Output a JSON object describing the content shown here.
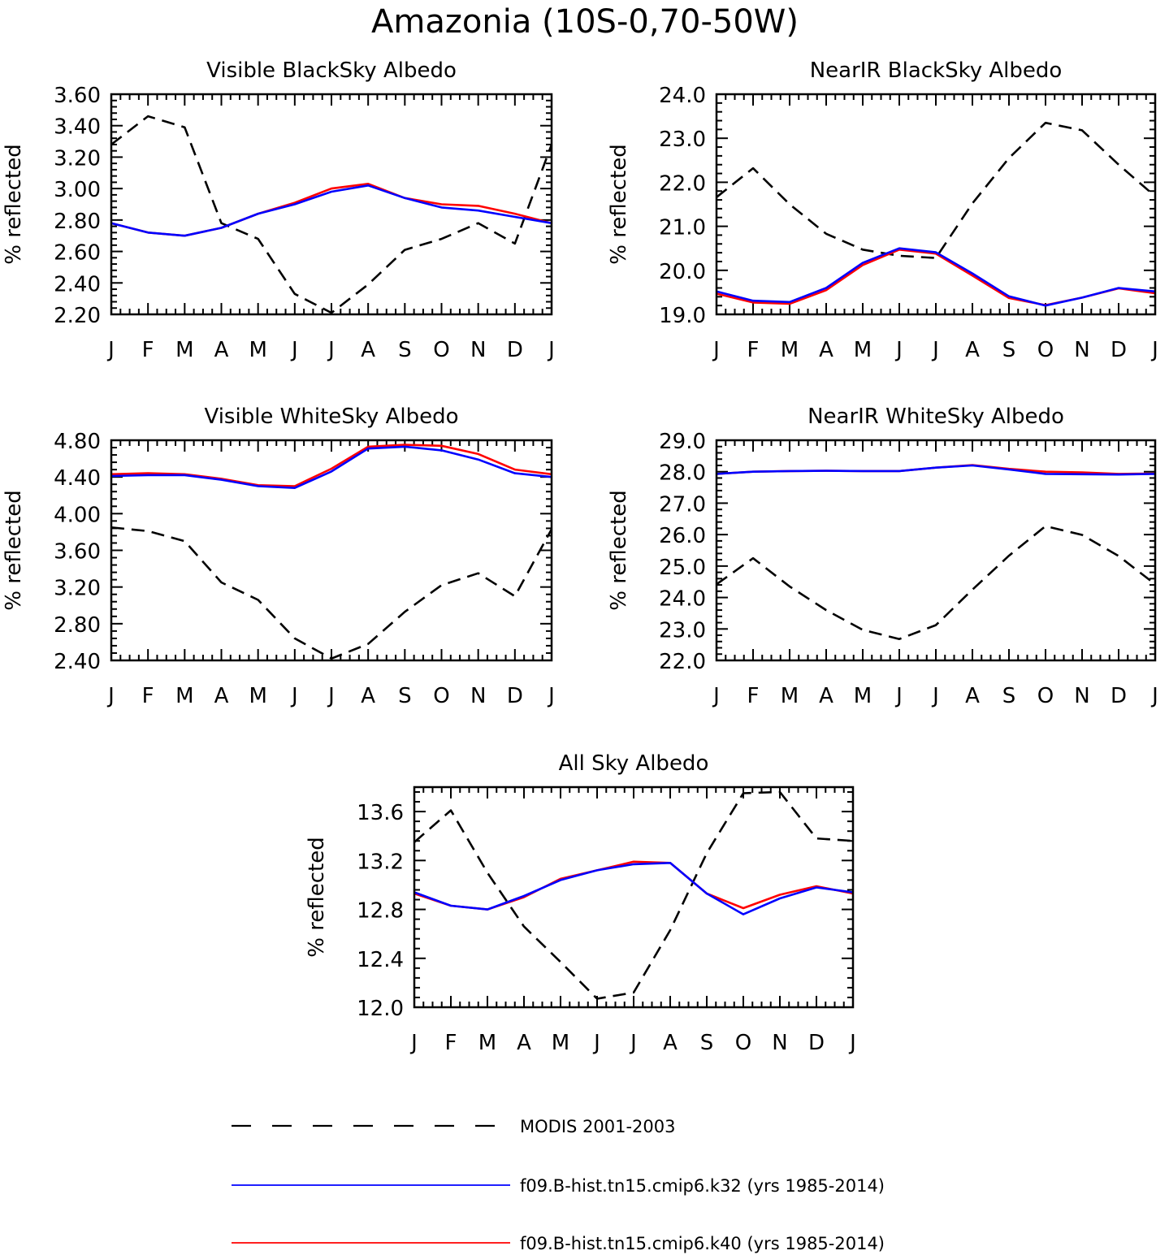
{
  "title": "Amazonia (10S-0,70-50W)",
  "months": [
    "J",
    "F",
    "M",
    "A",
    "M",
    "J",
    "J",
    "A",
    "S",
    "O",
    "N",
    "D",
    "J"
  ],
  "ylabel": "% reflected",
  "legend": [
    {
      "label": "MODIS 2001-2003",
      "color": "#000000",
      "dash": true
    },
    {
      "label": "f09.B-hist.tn15.cmip6.k32 (yrs 1985-2014)",
      "color": "#0000ff",
      "dash": false
    },
    {
      "label": "f09.B-hist.tn15.cmip6.k40 (yrs 1985-2014)",
      "color": "#ff0000",
      "dash": false
    }
  ],
  "chart_data": [
    {
      "type": "line",
      "title": "Visible BlackSky Albedo",
      "ylabel": "% reflected",
      "categories": [
        "J",
        "F",
        "M",
        "A",
        "M",
        "J",
        "J",
        "A",
        "S",
        "O",
        "N",
        "D",
        "J"
      ],
      "ylim": [
        2.2,
        3.6
      ],
      "yticks": [
        "2.20",
        "2.40",
        "2.60",
        "2.80",
        "3.00",
        "3.20",
        "3.40",
        "3.60"
      ],
      "series": [
        {
          "name": "MODIS 2001-2003",
          "values": [
            3.28,
            3.46,
            3.39,
            2.78,
            2.68,
            2.33,
            2.21,
            2.39,
            2.61,
            2.68,
            2.78,
            2.65,
            3.28
          ]
        },
        {
          "name": "f09.B-hist.tn15.cmip6.k32 (yrs 1985-2014)",
          "values": [
            2.78,
            2.72,
            2.7,
            2.75,
            2.84,
            2.9,
            2.98,
            3.02,
            2.94,
            2.88,
            2.86,
            2.82,
            2.78
          ]
        },
        {
          "name": "f09.B-hist.tn15.cmip6.k40 (yrs 1985-2014)",
          "values": [
            2.78,
            2.72,
            2.7,
            2.75,
            2.84,
            2.91,
            3.0,
            3.03,
            2.94,
            2.9,
            2.89,
            2.84,
            2.78
          ]
        }
      ]
    },
    {
      "type": "line",
      "title": "NearIR BlackSky Albedo",
      "ylabel": "% reflected",
      "categories": [
        "J",
        "F",
        "M",
        "A",
        "M",
        "J",
        "J",
        "A",
        "S",
        "O",
        "N",
        "D",
        "J"
      ],
      "ylim": [
        19.0,
        24.0
      ],
      "yticks": [
        "19.0",
        "20.0",
        "21.0",
        "22.0",
        "23.0",
        "24.0"
      ],
      "series": [
        {
          "name": "MODIS 2001-2003",
          "values": [
            21.66,
            22.32,
            21.5,
            20.83,
            20.47,
            20.33,
            20.28,
            21.52,
            22.55,
            23.35,
            23.18,
            22.4,
            21.68
          ]
        },
        {
          "name": "f09.B-hist.tn15.cmip6.k32 (yrs 1985-2014)",
          "values": [
            19.52,
            19.31,
            19.28,
            19.6,
            20.17,
            20.5,
            20.41,
            19.93,
            19.41,
            19.2,
            19.38,
            19.6,
            19.52
          ]
        },
        {
          "name": "f09.B-hist.tn15.cmip6.k40 (yrs 1985-2014)",
          "values": [
            19.47,
            19.27,
            19.24,
            19.55,
            20.12,
            20.47,
            20.38,
            19.88,
            19.37,
            19.21,
            19.38,
            19.59,
            19.48
          ]
        }
      ]
    },
    {
      "type": "line",
      "title": "Visible WhiteSky Albedo",
      "ylabel": "% reflected",
      "categories": [
        "J",
        "F",
        "M",
        "A",
        "M",
        "J",
        "J",
        "A",
        "S",
        "O",
        "N",
        "D",
        "J"
      ],
      "ylim": [
        2.4,
        4.8
      ],
      "yticks": [
        "2.40",
        "2.80",
        "3.20",
        "3.60",
        "4.00",
        "4.40",
        "4.80"
      ],
      "series": [
        {
          "name": "MODIS 2001-2003",
          "values": [
            3.85,
            3.81,
            3.7,
            3.25,
            3.06,
            2.64,
            2.42,
            2.58,
            2.93,
            3.22,
            3.35,
            3.1,
            3.83
          ]
        },
        {
          "name": "f09.B-hist.tn15.cmip6.k32 (yrs 1985-2014)",
          "values": [
            4.41,
            4.42,
            4.42,
            4.37,
            4.3,
            4.28,
            4.46,
            4.71,
            4.73,
            4.69,
            4.59,
            4.44,
            4.4
          ]
        },
        {
          "name": "f09.B-hist.tn15.cmip6.k40 (yrs 1985-2014)",
          "values": [
            4.43,
            4.44,
            4.43,
            4.38,
            4.31,
            4.3,
            4.49,
            4.73,
            4.75,
            4.74,
            4.65,
            4.48,
            4.43
          ]
        }
      ]
    },
    {
      "type": "line",
      "title": "NearIR WhiteSky Albedo",
      "ylabel": "% reflected",
      "categories": [
        "J",
        "F",
        "M",
        "A",
        "M",
        "J",
        "J",
        "A",
        "S",
        "O",
        "N",
        "D",
        "J"
      ],
      "ylim": [
        22.0,
        29.0
      ],
      "yticks": [
        "22.0",
        "23.0",
        "24.0",
        "25.0",
        "26.0",
        "27.0",
        "28.0",
        "29.0"
      ],
      "series": [
        {
          "name": "MODIS 2001-2003",
          "values": [
            24.42,
            25.25,
            24.35,
            23.6,
            22.97,
            22.68,
            23.12,
            24.25,
            25.33,
            26.27,
            25.99,
            25.32,
            24.42
          ]
        },
        {
          "name": "f09.B-hist.tn15.cmip6.k32 (yrs 1985-2014)",
          "values": [
            27.93,
            28.0,
            28.02,
            28.03,
            28.02,
            28.02,
            28.13,
            28.2,
            28.07,
            27.93,
            27.92,
            27.91,
            27.93
          ]
        },
        {
          "name": "f09.B-hist.tn15.cmip6.k40 (yrs 1985-2014)",
          "values": [
            27.93,
            28.0,
            28.02,
            28.03,
            28.02,
            28.02,
            28.13,
            28.21,
            28.09,
            28.0,
            27.98,
            27.93,
            27.94
          ]
        }
      ]
    },
    {
      "type": "line",
      "title": "All Sky Albedo",
      "ylabel": "% reflected",
      "categories": [
        "J",
        "F",
        "M",
        "A",
        "M",
        "J",
        "J",
        "A",
        "S",
        "O",
        "N",
        "D",
        "J"
      ],
      "ylim": [
        12.0,
        13.8
      ],
      "yticks": [
        "12.0",
        "12.4",
        "12.8",
        "13.2",
        "13.6"
      ],
      "series": [
        {
          "name": "MODIS 2001-2003",
          "values": [
            13.35,
            13.61,
            13.1,
            12.66,
            12.37,
            12.07,
            12.12,
            12.63,
            13.26,
            13.75,
            13.76,
            13.38,
            13.36
          ]
        },
        {
          "name": "f09.B-hist.tn15.cmip6.k32 (yrs 1985-2014)",
          "values": [
            12.94,
            12.83,
            12.8,
            12.91,
            13.04,
            13.12,
            13.17,
            13.18,
            12.93,
            12.76,
            12.89,
            12.98,
            12.94
          ]
        },
        {
          "name": "f09.B-hist.tn15.cmip6.k40 (yrs 1985-2014)",
          "values": [
            12.93,
            12.83,
            12.8,
            12.9,
            13.05,
            13.12,
            13.19,
            13.18,
            12.93,
            12.81,
            12.92,
            12.99,
            12.93
          ]
        }
      ]
    }
  ]
}
